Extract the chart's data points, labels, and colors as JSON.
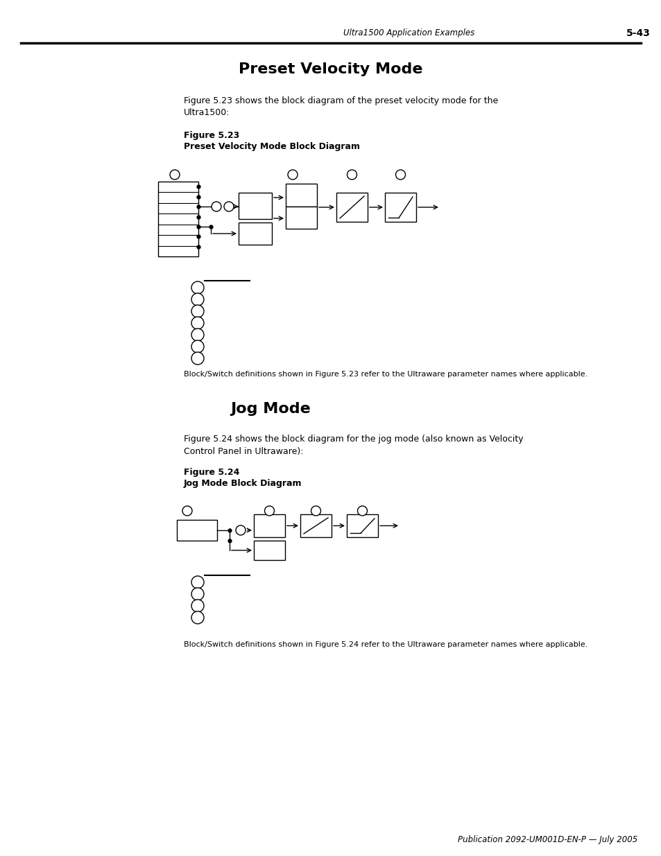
{
  "page_header_left": "Ultra1500 Application Examples",
  "page_header_right": "5-43",
  "section1_title": "Preset Velocity Mode",
  "section1_body_line1": "Figure 5.23 shows the block diagram of the preset velocity mode for the",
  "section1_body_line2": "Ultra1500:",
  "figure1_label": "Figure 5.23",
  "figure1_title": "Preset Velocity Mode Block Diagram",
  "figure1_note": "Block/Switch definitions shown in Figure 5.23 refer to the Ultraware parameter names where applicable.",
  "section2_title": "Jog Mode",
  "section2_body_line1": "Figure 5.24 shows the block diagram for the jog mode (also known as Velocity",
  "section2_body_line2": "Control Panel in Ultraware):",
  "figure2_label": "Figure 5.24",
  "figure2_title": "Jog Mode Block Diagram",
  "figure2_note": "Block/Switch definitions shown in Figure 5.24 refer to the Ultraware parameter names where applicable.",
  "footer": "Publication 2092-UM001D-EN-P — July 2005",
  "bg_color": "#ffffff",
  "text_color": "#000000"
}
